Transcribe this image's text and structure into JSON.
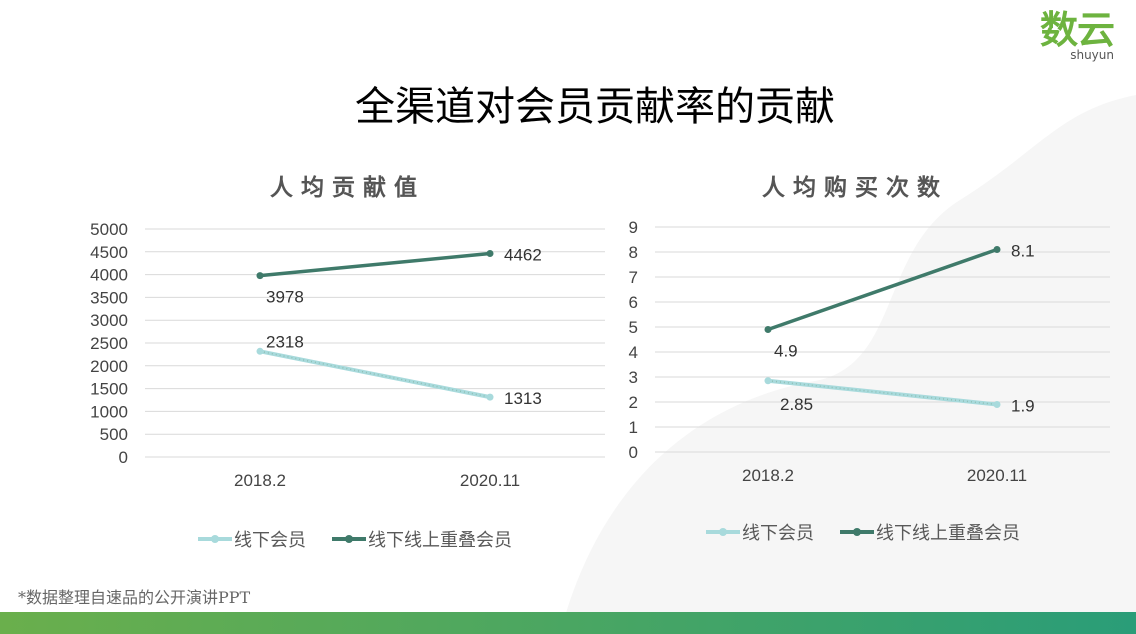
{
  "logo": {
    "cn": "数云",
    "en": "shuyun",
    "color": "#6db33f"
  },
  "title": "全渠道对会员贡献率的贡献",
  "note": "*数据整理自速品的公开演讲PPT",
  "colors": {
    "offline": "#a8dadc",
    "overlap": "#3f7a6a"
  },
  "legend": [
    "线下会员",
    "线下线上重叠会员"
  ],
  "chart_data": [
    {
      "type": "line",
      "title": "人均贡献值",
      "categories": [
        "2018.2",
        "2020.11"
      ],
      "ylim": [
        0,
        5000
      ],
      "yticks": [
        0,
        500,
        1000,
        1500,
        2000,
        2500,
        3000,
        3500,
        4000,
        4500,
        5000
      ],
      "grid": true,
      "legend": "bottom",
      "series": [
        {
          "name": "线下会员",
          "values": [
            2318,
            1313
          ]
        },
        {
          "name": "线下线上重叠会员",
          "values": [
            3978,
            4462
          ]
        }
      ]
    },
    {
      "type": "line",
      "title": "人均购买次数",
      "categories": [
        "2018.2",
        "2020.11"
      ],
      "ylim": [
        0,
        9
      ],
      "yticks": [
        0,
        1,
        2,
        3,
        4,
        5,
        6,
        7,
        8,
        9
      ],
      "grid": true,
      "legend": "bottom",
      "series": [
        {
          "name": "线下会员",
          "values": [
            2.85,
            1.9
          ]
        },
        {
          "name": "线下线上重叠会员",
          "values": [
            4.9,
            8.1
          ]
        }
      ]
    }
  ]
}
